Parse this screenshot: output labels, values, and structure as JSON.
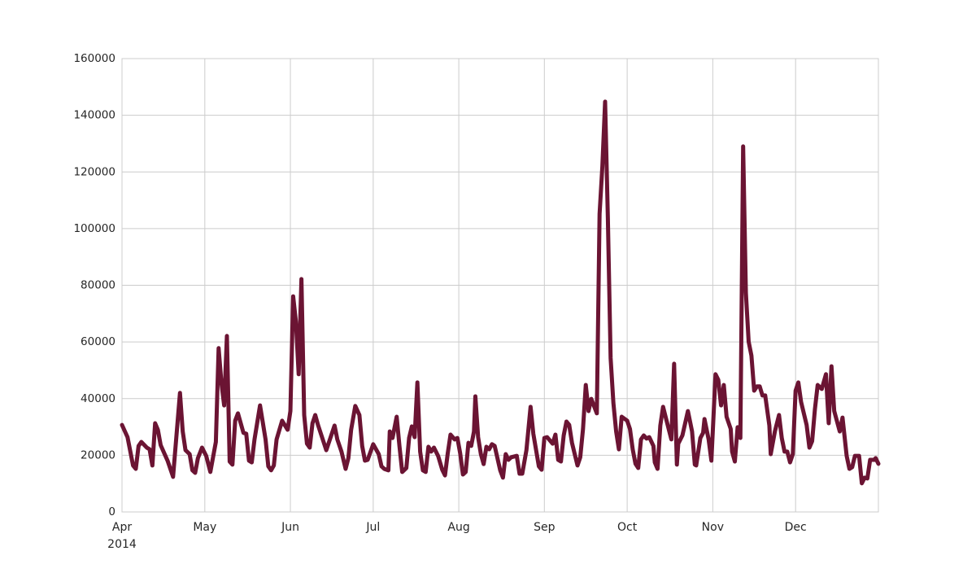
{
  "chart_data": {
    "type": "line",
    "x": [
      0,
      2,
      4,
      5,
      6,
      7,
      9,
      10,
      11,
      12,
      13,
      14,
      16.5,
      18.5,
      21,
      22,
      23,
      24.5,
      25.5,
      26.5,
      27.5,
      29,
      30.5,
      32,
      34,
      35,
      36,
      37,
      38,
      39,
      40,
      41,
      42,
      44,
      45,
      46,
      47,
      48,
      50,
      52,
      53,
      54,
      55,
      56,
      58,
      60,
      61,
      62,
      63,
      64,
      65,
      66,
      67,
      68,
      69,
      70,
      71,
      74,
      77,
      78,
      79.5,
      81,
      82,
      83,
      84.5,
      86,
      87,
      88,
      89,
      91,
      93,
      94,
      95,
      96.5,
      97,
      98,
      99.5,
      100.5,
      101.5,
      103,
      104,
      105,
      106,
      107,
      108,
      109,
      110,
      111,
      112,
      113,
      114.5,
      116,
      117,
      118,
      119,
      120.5,
      121.5,
      122.5,
      123.5,
      124.5,
      125.5,
      126.5,
      127.5,
      128,
      129,
      130,
      131,
      132,
      133,
      134,
      135,
      137,
      138,
      139,
      140,
      141,
      143,
      144,
      145,
      146.5,
      148,
      149,
      151,
      152,
      153,
      154,
      156,
      157,
      158,
      159,
      160,
      161,
      162,
      163,
      165,
      166,
      167,
      168,
      169,
      170,
      172,
      173,
      174,
      175,
      176,
      177,
      178,
      179,
      180,
      181,
      183,
      184,
      185,
      186,
      187,
      188,
      189,
      190,
      191,
      192.5,
      193,
      194,
      195,
      196,
      197.5,
      199,
      200,
      201,
      201.5,
      203,
      205,
      206.5,
      207.5,
      208,
      209.5,
      210.5,
      211,
      212.5,
      213.5,
      215,
      216,
      217,
      218,
      219,
      220.5,
      221,
      222,
      223,
      224,
      225,
      226,
      227,
      228,
      229,
      230,
      231,
      232,
      233,
      234.5,
      235,
      236.5,
      238,
      239,
      240,
      241,
      242,
      243,
      244,
      245,
      246,
      248,
      249,
      250,
      251,
      252,
      253.5,
      255,
      256,
      257,
      258,
      260,
      261,
      262.5,
      263.5,
      264.5,
      265.5,
      267,
      268,
      269,
      270,
      271,
      272.5,
      273,
      274
    ],
    "series": [
      {
        "color": "#6b1433",
        "values": [
          30700,
          26400,
          16400,
          15200,
          23300,
          24700,
          22700,
          22100,
          16400,
          31300,
          29000,
          23600,
          18100,
          12400,
          42000,
          28400,
          21800,
          20400,
          14700,
          13800,
          19000,
          22700,
          19800,
          14100,
          24700,
          57800,
          45700,
          37600,
          62100,
          17800,
          16700,
          32200,
          34800,
          27900,
          27600,
          18100,
          17500,
          25600,
          37600,
          25600,
          16100,
          14700,
          16400,
          25600,
          32200,
          29000,
          35600,
          76100,
          67200,
          48600,
          82200,
          34200,
          24100,
          22700,
          31300,
          34200,
          30700,
          21800,
          30500,
          25600,
          21300,
          15200,
          19000,
          29000,
          37400,
          34200,
          23300,
          18100,
          18400,
          23900,
          20400,
          16100,
          15200,
          14700,
          28400,
          26100,
          33600,
          23300,
          14100,
          15500,
          26100,
          30200,
          26400,
          45700,
          21300,
          14700,
          14100,
          23000,
          21300,
          22700,
          19800,
          14900,
          12900,
          20700,
          27300,
          25600,
          26100,
          20700,
          13200,
          14100,
          24400,
          23300,
          28400,
          40800,
          26400,
          20400,
          16900,
          23000,
          22100,
          23900,
          23300,
          14700,
          12100,
          20400,
          18400,
          19300,
          19800,
          13500,
          13500,
          21800,
          37100,
          27600,
          16100,
          14900,
          26100,
          26400,
          24100,
          27300,
          18400,
          17800,
          27000,
          31900,
          30700,
          24400,
          16400,
          19300,
          29300,
          44800,
          35600,
          39900,
          34800,
          105200,
          121800,
          144800,
          103700,
          54300,
          38500,
          28400,
          22100,
          33600,
          32200,
          29300,
          22100,
          17000,
          15500,
          25600,
          27000,
          25900,
          26400,
          23300,
          17500,
          15200,
          30500,
          37100,
          31300,
          25600,
          52300,
          16700,
          24100,
          27000,
          35600,
          28400,
          16700,
          16400,
          26100,
          27900,
          32800,
          25600,
          18100,
          48600,
          46600,
          37600,
          44800,
          33600,
          29300,
          21300,
          17800,
          29900,
          26100,
          129000,
          77300,
          60100,
          55200,
          42800,
          44300,
          44300,
          41100,
          41100,
          30500,
          20400,
          28400,
          34200,
          26100,
          21300,
          21300,
          17500,
          20400,
          42800,
          45700,
          38800,
          30700,
          22700,
          25000,
          36200,
          44800,
          43400,
          48600,
          31300,
          51400,
          35600,
          28400,
          33300,
          19800,
          15200,
          15800,
          19800,
          19800,
          10100,
          12100,
          11800,
          18400,
          18400,
          19000,
          17000
        ]
      }
    ],
    "xlim": [
      0,
      274
    ],
    "xticks": [
      {
        "value": 0,
        "label": "Apr\n2014"
      },
      {
        "value": 30,
        "label": "May"
      },
      {
        "value": 61,
        "label": "Jun"
      },
      {
        "value": 91,
        "label": "Jul"
      },
      {
        "value": 122,
        "label": "Aug"
      },
      {
        "value": 153,
        "label": "Sep"
      },
      {
        "value": 183,
        "label": "Oct"
      },
      {
        "value": 214,
        "label": "Nov"
      },
      {
        "value": 244,
        "label": "Dec"
      }
    ],
    "ylim": [
      0,
      160000
    ],
    "yticks": [
      0,
      20000,
      40000,
      60000,
      80000,
      100000,
      120000,
      140000,
      160000
    ],
    "grid": true
  }
}
